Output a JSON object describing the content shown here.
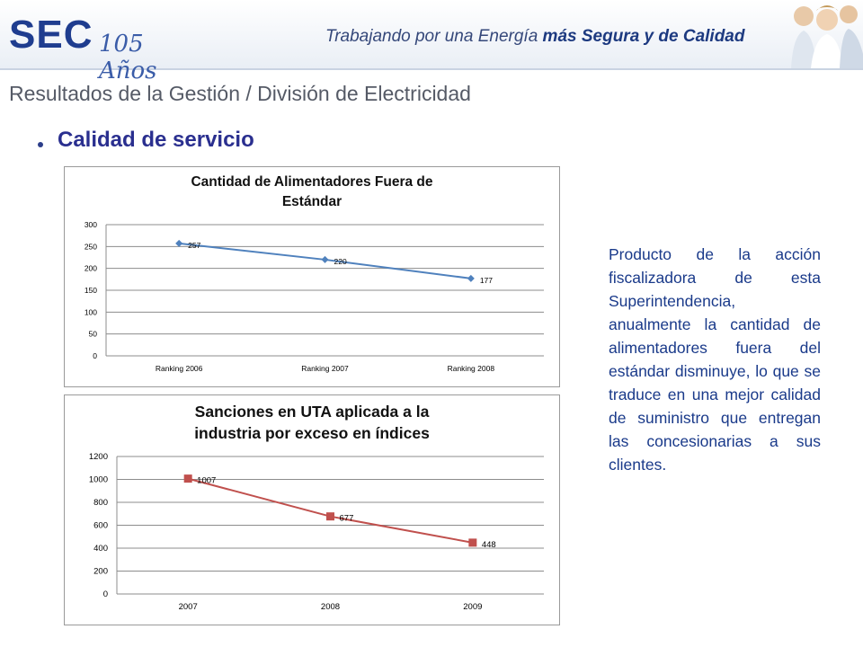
{
  "header": {
    "logo_text": "SEC",
    "logo_years": "105 Años",
    "tagline_plain": "Trabajando por una Energía ",
    "tagline_bold": "más Segura y de Calidad"
  },
  "page_title": "Resultados de la Gestión / División de Electricidad",
  "section_title": "Calidad de servicio",
  "description": "Producto de la acción fiscalizadora de esta Superintendencia, anualmente la cantidad de alimentadores fuera del estándar disminuye, lo que se traduce en una mejor calidad de suministro que entregan las concesionarias a sus clientes.",
  "colors": {
    "series1": "#4f81bd",
    "series2": "#c0504d",
    "text": "#1a3a8a",
    "title": "#2a2f8f"
  },
  "chart_data": [
    {
      "type": "line",
      "title_lines": [
        "Cantidad de Alimentadores Fuera de",
        "Estándar"
      ],
      "categories": [
        "Ranking 2006",
        "Ranking 2007",
        "Ranking 2008"
      ],
      "values": [
        257,
        220,
        177
      ],
      "ylim": [
        0,
        300
      ],
      "yticks": [
        0,
        50,
        100,
        150,
        200,
        250,
        300
      ],
      "grid": true,
      "legend": "none",
      "marker": "diamond",
      "color": "#4f81bd"
    },
    {
      "type": "line",
      "title_lines": [
        "Sanciones en UTA aplicada a la",
        "industria por exceso en índices"
      ],
      "categories": [
        "2007",
        "2008",
        "2009"
      ],
      "values": [
        1007,
        677,
        448
      ],
      "ylim": [
        0,
        1200
      ],
      "yticks": [
        0,
        200,
        400,
        600,
        800,
        1000,
        1200
      ],
      "grid": true,
      "legend": "none",
      "marker": "square",
      "color": "#c0504d"
    }
  ]
}
